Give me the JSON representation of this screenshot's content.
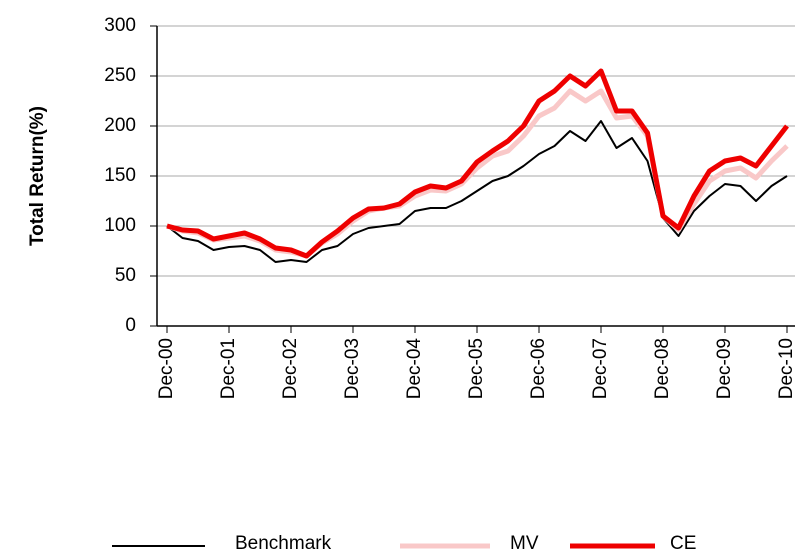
{
  "chart_data": {
    "type": "line",
    "ylabel": "Total Return(%)",
    "categories": [
      "Dec-00",
      null,
      null,
      null,
      "Dec-01",
      null,
      null,
      null,
      "Dec-02",
      null,
      null,
      null,
      "Dec-03",
      null,
      null,
      null,
      "Dec-04",
      null,
      null,
      null,
      "Dec-05",
      null,
      null,
      null,
      "Dec-06",
      null,
      null,
      null,
      "Dec-07",
      null,
      null,
      null,
      "Dec-08",
      null,
      null,
      null,
      "Dec-09",
      null,
      null,
      null,
      "Dec-10"
    ],
    "series": [
      {
        "name": "Benchmark",
        "color": "#000000",
        "width": 2,
        "values": [
          100,
          88,
          85,
          76,
          79,
          80,
          76,
          64,
          66,
          64,
          76,
          80,
          92,
          98,
          100,
          102,
          115,
          118,
          118,
          125,
          135,
          145,
          150,
          160,
          172,
          180,
          195,
          185,
          205,
          178,
          188,
          165,
          108,
          90,
          115,
          130,
          142,
          140,
          125,
          140,
          150
        ]
      },
      {
        "name": "MV",
        "color": "#f9c8c8",
        "width": 5,
        "values": [
          100,
          95,
          93,
          86,
          88,
          90,
          85,
          76,
          74,
          70,
          83,
          92,
          105,
          115,
          118,
          120,
          130,
          136,
          135,
          142,
          158,
          170,
          175,
          190,
          210,
          218,
          235,
          225,
          235,
          208,
          210,
          190,
          110,
          96,
          122,
          145,
          155,
          158,
          148,
          165,
          180
        ]
      },
      {
        "name": "CE",
        "color": "#ee0000",
        "width": 5,
        "values": [
          100,
          96,
          95,
          87,
          90,
          93,
          87,
          78,
          76,
          70,
          84,
          95,
          108,
          117,
          118,
          122,
          134,
          140,
          138,
          145,
          164,
          175,
          185,
          200,
          225,
          235,
          250,
          240,
          255,
          215,
          215,
          193,
          110,
          98,
          130,
          155,
          165,
          168,
          160,
          180,
          200
        ]
      }
    ],
    "ylim": [
      0,
      300
    ],
    "yticks": [
      0,
      50,
      100,
      150,
      200,
      250,
      300
    ],
    "grid": true,
    "legend": "bottom"
  }
}
